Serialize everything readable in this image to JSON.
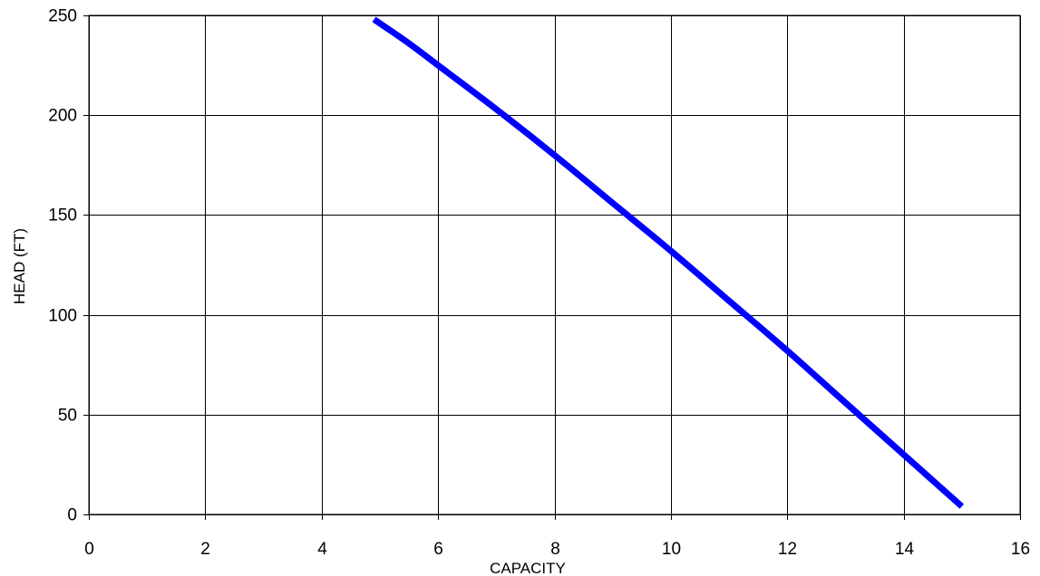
{
  "chart_data": {
    "type": "line",
    "title": "",
    "xlabel": "CAPACITY",
    "ylabel": "HEAD (FT)",
    "xlim": [
      0,
      16
    ],
    "ylim": [
      0,
      250
    ],
    "x_ticks": [
      0,
      2,
      4,
      6,
      8,
      10,
      12,
      14,
      16
    ],
    "y_ticks": [
      0,
      50,
      100,
      150,
      200,
      250
    ],
    "grid": true,
    "legend": "none",
    "colors": {
      "series": "#0000ff",
      "grid": "#000000",
      "background": "#ffffff"
    },
    "series": [
      {
        "x": [
          4.9,
          5.5,
          6.0,
          7.0,
          8.0,
          9.0,
          10.0,
          11.0,
          12.0,
          13.0,
          14.0,
          15.0
        ],
        "y": [
          248,
          236,
          225,
          203,
          180,
          156,
          132,
          107,
          82,
          56,
          30,
          4
        ]
      }
    ]
  }
}
